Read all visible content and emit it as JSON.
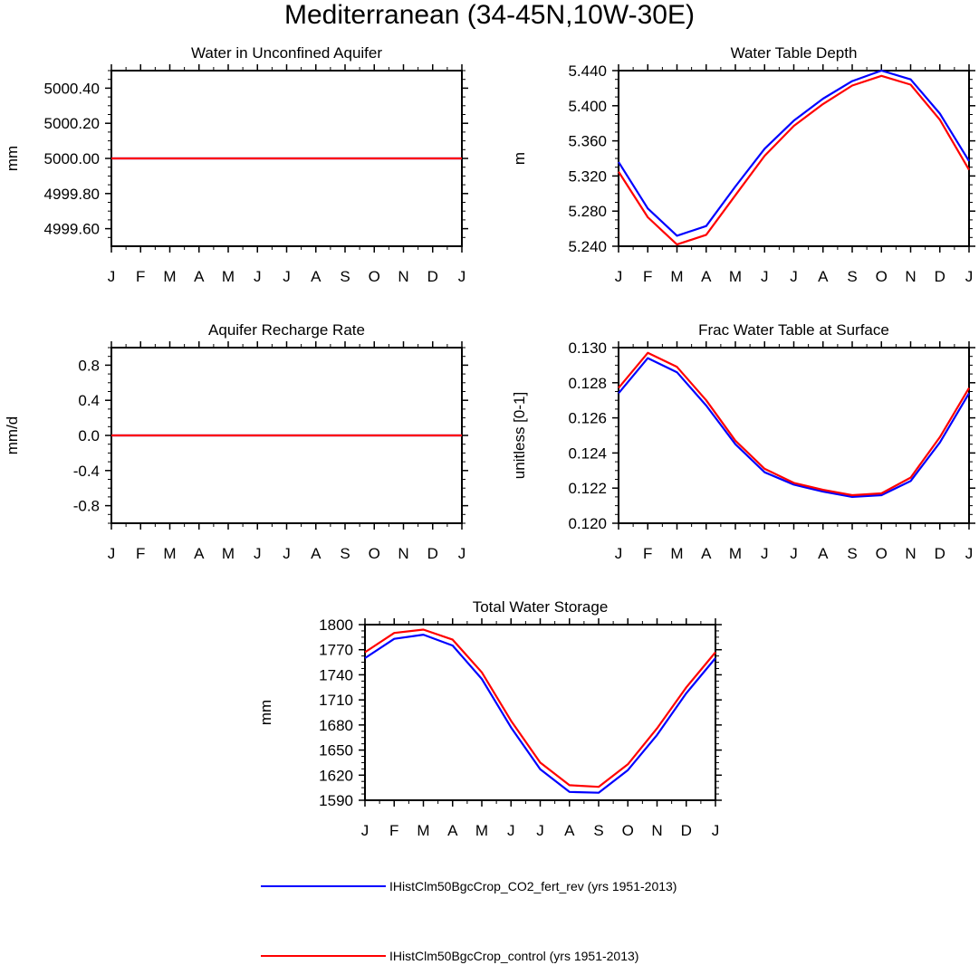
{
  "page": {
    "title": "Mediterranean (34-45N,10W-30E)"
  },
  "colors": {
    "series1": "#0000ff",
    "series2": "#ff0000",
    "axis": "#000000"
  },
  "legend": [
    {
      "label": "IHistClm50BgcCrop_CO2_fert_rev (yrs 1951-2013)",
      "color": "#0000ff"
    },
    {
      "label": "IHistClm50BgcCrop_control (yrs 1951-2013)",
      "color": "#ff0000"
    }
  ],
  "chart_data": [
    {
      "type": "line",
      "title": "Water in Unconfined Aquifer",
      "ylabel": "mm",
      "categories": [
        "J",
        "F",
        "M",
        "A",
        "M",
        "J",
        "J",
        "A",
        "S",
        "O",
        "N",
        "D",
        "J"
      ],
      "ylim": [
        4999.5,
        5000.5
      ],
      "yticks": [
        4999.6,
        4999.8,
        5000.0,
        5000.2,
        5000.4
      ],
      "ytick_labels": [
        "4999.60",
        "4999.80",
        "5000.00",
        "5000.20",
        "5000.40"
      ],
      "series": [
        {
          "name": "IHistClm50BgcCrop_CO2_fert_rev (yrs 1951-2013)",
          "color": "#0000ff",
          "values": [
            5000,
            5000,
            5000,
            5000,
            5000,
            5000,
            5000,
            5000,
            5000,
            5000,
            5000,
            5000,
            5000
          ]
        },
        {
          "name": "IHistClm50BgcCrop_control (yrs 1951-2013)",
          "color": "#ff0000",
          "values": [
            5000,
            5000,
            5000,
            5000,
            5000,
            5000,
            5000,
            5000,
            5000,
            5000,
            5000,
            5000,
            5000
          ]
        }
      ]
    },
    {
      "type": "line",
      "title": "Water Table Depth",
      "ylabel": "m",
      "categories": [
        "J",
        "F",
        "M",
        "A",
        "M",
        "J",
        "J",
        "A",
        "S",
        "O",
        "N",
        "D",
        "J"
      ],
      "ylim": [
        5.24,
        5.44
      ],
      "yticks": [
        5.24,
        5.28,
        5.32,
        5.36,
        5.4,
        5.44
      ],
      "ytick_labels": [
        "5.240",
        "5.280",
        "5.320",
        "5.360",
        "5.400",
        "5.440"
      ],
      "series": [
        {
          "name": "IHistClm50BgcCrop_CO2_fert_rev (yrs 1951-2013)",
          "color": "#0000ff",
          "values": [
            5.336,
            5.283,
            5.252,
            5.263,
            5.308,
            5.351,
            5.383,
            5.408,
            5.428,
            5.44,
            5.43,
            5.391,
            5.337
          ]
        },
        {
          "name": "IHistClm50BgcCrop_control (yrs 1951-2013)",
          "color": "#ff0000",
          "values": [
            5.325,
            5.273,
            5.242,
            5.253,
            5.298,
            5.343,
            5.377,
            5.402,
            5.423,
            5.434,
            5.424,
            5.384,
            5.327
          ]
        }
      ]
    },
    {
      "type": "line",
      "title": "Aquifer Recharge Rate",
      "ylabel": "mm/d",
      "categories": [
        "J",
        "F",
        "M",
        "A",
        "M",
        "J",
        "J",
        "A",
        "S",
        "O",
        "N",
        "D",
        "J"
      ],
      "ylim": [
        -1.0,
        1.0
      ],
      "yticks": [
        -0.8,
        -0.4,
        0.0,
        0.4,
        0.8
      ],
      "ytick_labels": [
        "-0.8",
        "-0.4",
        "0.0",
        "0.4",
        "0.8"
      ],
      "series": [
        {
          "name": "IHistClm50BgcCrop_CO2_fert_rev (yrs 1951-2013)",
          "color": "#0000ff",
          "values": [
            0,
            0,
            0,
            0,
            0,
            0,
            0,
            0,
            0,
            0,
            0,
            0,
            0
          ]
        },
        {
          "name": "IHistClm50BgcCrop_control (yrs 1951-2013)",
          "color": "#ff0000",
          "values": [
            0,
            0,
            0,
            0,
            0,
            0,
            0,
            0,
            0,
            0,
            0,
            0,
            0
          ]
        }
      ]
    },
    {
      "type": "line",
      "title": "Frac Water Table at Surface",
      "ylabel": "unitless [0-1]",
      "categories": [
        "J",
        "F",
        "M",
        "A",
        "M",
        "J",
        "J",
        "A",
        "S",
        "O",
        "N",
        "D",
        "J"
      ],
      "ylim": [
        0.12,
        0.13
      ],
      "yticks": [
        0.12,
        0.122,
        0.124,
        0.126,
        0.128,
        0.13
      ],
      "ytick_labels": [
        "0.120",
        "0.122",
        "0.124",
        "0.126",
        "0.128",
        "0.130"
      ],
      "series": [
        {
          "name": "IHistClm50BgcCrop_CO2_fert_rev (yrs 1951-2013)",
          "color": "#0000ff",
          "values": [
            0.1274,
            0.1294,
            0.1286,
            0.1267,
            0.1245,
            0.1229,
            0.1222,
            0.1218,
            0.1215,
            0.1216,
            0.1224,
            0.1246,
            0.1274
          ]
        },
        {
          "name": "IHistClm50BgcCrop_control (yrs 1951-2013)",
          "color": "#ff0000",
          "values": [
            0.1277,
            0.1297,
            0.1289,
            0.127,
            0.1247,
            0.1231,
            0.1223,
            0.1219,
            0.1216,
            0.1217,
            0.1226,
            0.1249,
            0.1277
          ]
        }
      ]
    },
    {
      "type": "line",
      "title": "Total Water Storage",
      "ylabel": "mm",
      "categories": [
        "J",
        "F",
        "M",
        "A",
        "M",
        "J",
        "J",
        "A",
        "S",
        "O",
        "N",
        "D",
        "J"
      ],
      "ylim": [
        1590,
        1800
      ],
      "yticks": [
        1590,
        1620,
        1650,
        1680,
        1710,
        1740,
        1770,
        1800
      ],
      "ytick_labels": [
        "1590",
        "1620",
        "1650",
        "1680",
        "1710",
        "1740",
        "1770",
        "1800"
      ],
      "series": [
        {
          "name": "IHistClm50BgcCrop_CO2_fert_rev (yrs 1951-2013)",
          "color": "#0000ff",
          "values": [
            1760,
            1783,
            1788,
            1775,
            1735,
            1677,
            1627,
            1600,
            1599,
            1626,
            1668,
            1718,
            1760
          ]
        },
        {
          "name": "IHistClm50BgcCrop_control (yrs 1951-2013)",
          "color": "#ff0000",
          "values": [
            1767,
            1790,
            1794,
            1782,
            1743,
            1685,
            1635,
            1608,
            1606,
            1633,
            1676,
            1725,
            1767
          ]
        }
      ]
    }
  ]
}
